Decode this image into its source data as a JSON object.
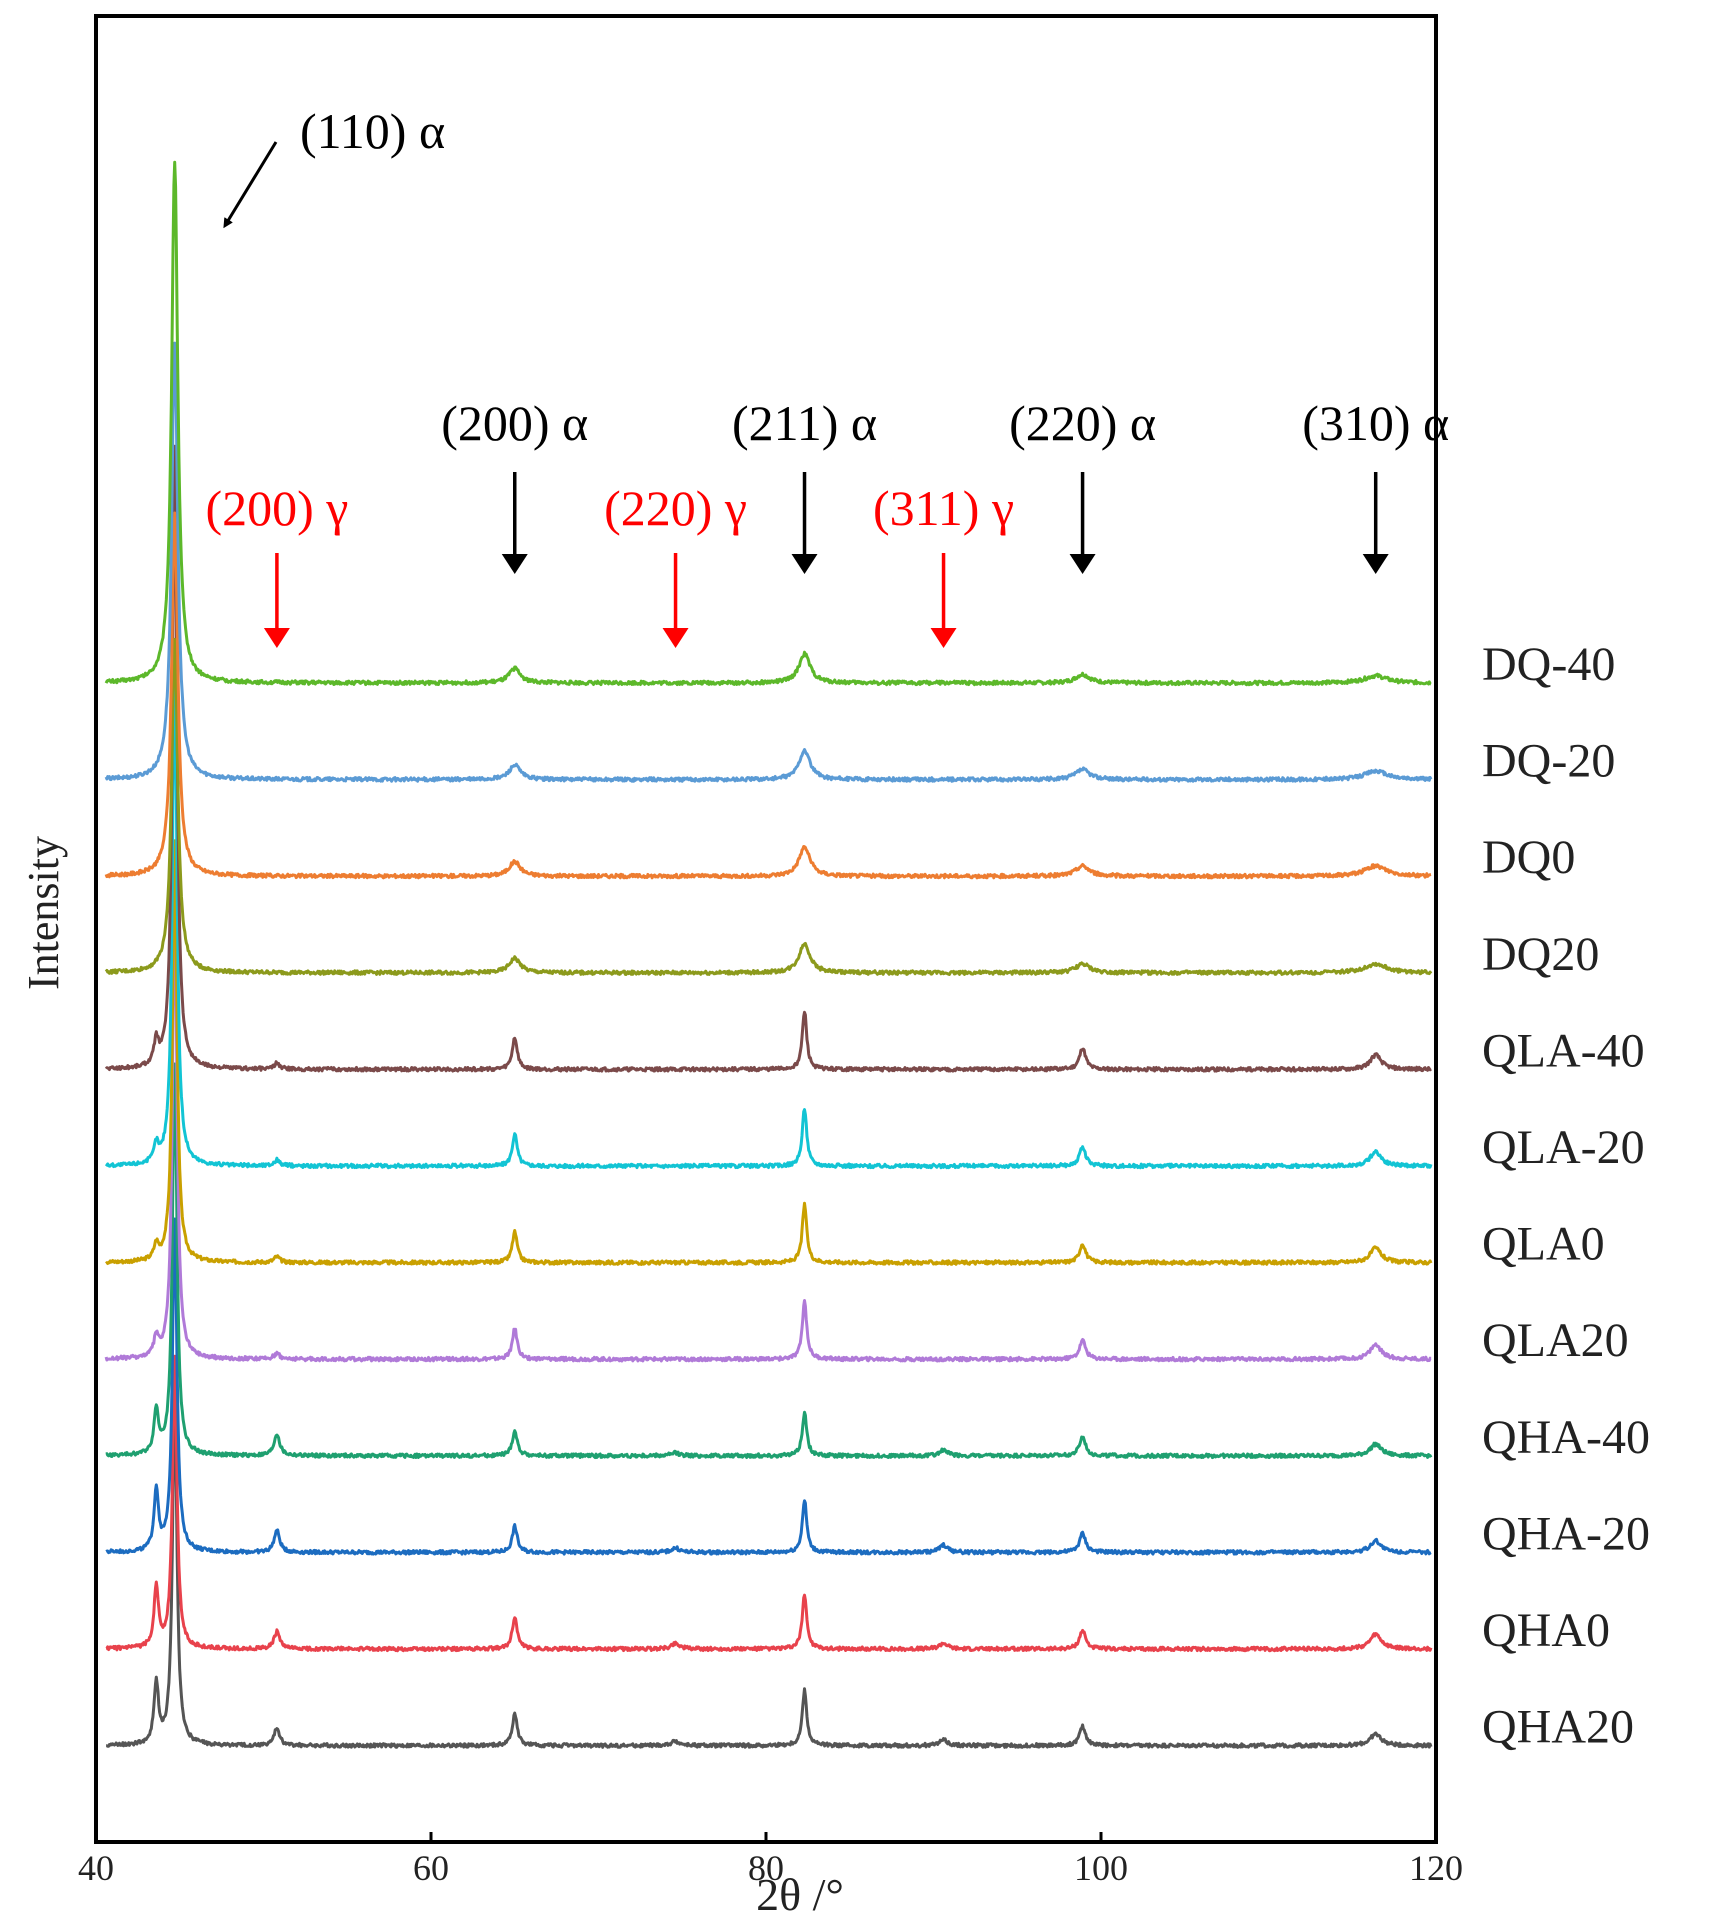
{
  "chart_data": {
    "type": "line",
    "title": "",
    "xlabel": "2θ /°",
    "ylabel": "Intensity",
    "xlim": [
      40,
      120
    ],
    "xticks": [
      "40",
      "60",
      "80",
      "100",
      "120"
    ],
    "grid": false,
    "legend": "right-side labels",
    "alpha_peaks": [
      {
        "label": "(110) α",
        "x": 44.7,
        "color": "#000000"
      },
      {
        "label": "(200) α",
        "x": 65.0,
        "color": "#000000"
      },
      {
        "label": "(211) α",
        "x": 82.3,
        "color": "#000000"
      },
      {
        "label": "(220) α",
        "x": 98.9,
        "color": "#000000"
      },
      {
        "label": "(310) α",
        "x": 116.4,
        "color": "#000000"
      }
    ],
    "gamma_peaks": [
      {
        "label": "(200) γ",
        "x": 50.8,
        "color": "#ff0000"
      },
      {
        "label": "(220) γ",
        "x": 74.6,
        "color": "#ff0000"
      },
      {
        "label": "(311) γ",
        "x": 90.6,
        "color": "#ff0000"
      }
    ],
    "series": [
      {
        "name": "DQ-40",
        "color": "#5cb82a",
        "peaks": [
          [
            44.7,
            3.6,
            0.22
          ],
          [
            65.0,
            0.1,
            0.4
          ],
          [
            82.3,
            0.2,
            0.4
          ],
          [
            98.9,
            0.06,
            0.5
          ],
          [
            116.4,
            0.05,
            0.8
          ]
        ]
      },
      {
        "name": "DQ-20",
        "color": "#5b9bd5",
        "peaks": [
          [
            44.7,
            3.0,
            0.22
          ],
          [
            65.0,
            0.1,
            0.4
          ],
          [
            82.3,
            0.2,
            0.4
          ],
          [
            98.9,
            0.07,
            0.5
          ],
          [
            116.4,
            0.06,
            0.8
          ]
        ]
      },
      {
        "name": "DQ0",
        "color": "#ed7d31",
        "peaks": [
          [
            44.7,
            2.5,
            0.22
          ],
          [
            65.0,
            0.1,
            0.4
          ],
          [
            82.3,
            0.2,
            0.4
          ],
          [
            98.9,
            0.07,
            0.5
          ],
          [
            116.4,
            0.07,
            0.8
          ]
        ]
      },
      {
        "name": "DQ20",
        "color": "#8c9a1c",
        "peaks": [
          [
            44.7,
            2.3,
            0.22
          ],
          [
            65.0,
            0.1,
            0.4
          ],
          [
            82.3,
            0.2,
            0.4
          ],
          [
            98.9,
            0.06,
            0.5
          ],
          [
            116.4,
            0.06,
            0.8
          ]
        ]
      },
      {
        "name": "QLA-40",
        "color": "#7b4a4a",
        "peaks": [
          [
            43.6,
            0.16,
            0.16
          ],
          [
            44.7,
            4.3,
            0.16
          ],
          [
            50.8,
            0.04,
            0.2
          ],
          [
            65.0,
            0.22,
            0.18
          ],
          [
            82.3,
            0.4,
            0.16
          ],
          [
            98.9,
            0.15,
            0.22
          ],
          [
            116.4,
            0.1,
            0.4
          ]
        ]
      },
      {
        "name": "QLA-20",
        "color": "#12c4d4",
        "peaks": [
          [
            43.6,
            0.12,
            0.16
          ],
          [
            44.7,
            3.5,
            0.16
          ],
          [
            50.8,
            0.04,
            0.2
          ],
          [
            65.0,
            0.22,
            0.18
          ],
          [
            82.3,
            0.4,
            0.16
          ],
          [
            98.9,
            0.13,
            0.22
          ],
          [
            116.4,
            0.1,
            0.4
          ]
        ]
      },
      {
        "name": "QLA0",
        "color": "#c9a000",
        "peaks": [
          [
            43.6,
            0.1,
            0.16
          ],
          [
            44.7,
            2.9,
            0.16
          ],
          [
            50.8,
            0.04,
            0.2
          ],
          [
            65.0,
            0.21,
            0.18
          ],
          [
            82.3,
            0.4,
            0.16
          ],
          [
            98.9,
            0.13,
            0.22
          ],
          [
            116.4,
            0.1,
            0.4
          ]
        ]
      },
      {
        "name": "QLA20",
        "color": "#b07ad8",
        "peaks": [
          [
            43.6,
            0.13,
            0.16
          ],
          [
            44.7,
            3.2,
            0.16
          ],
          [
            50.8,
            0.04,
            0.2
          ],
          [
            65.0,
            0.21,
            0.18
          ],
          [
            82.3,
            0.4,
            0.16
          ],
          [
            98.9,
            0.13,
            0.22
          ],
          [
            116.4,
            0.1,
            0.4
          ]
        ]
      },
      {
        "name": "QHA-40",
        "color": "#1fa070",
        "peaks": [
          [
            43.6,
            0.3,
            0.16
          ],
          [
            44.7,
            2.7,
            0.16
          ],
          [
            50.8,
            0.15,
            0.2
          ],
          [
            65.0,
            0.17,
            0.18
          ],
          [
            74.6,
            0.02,
            0.3
          ],
          [
            82.3,
            0.3,
            0.16
          ],
          [
            90.6,
            0.04,
            0.3
          ],
          [
            98.9,
            0.13,
            0.22
          ],
          [
            116.4,
            0.08,
            0.4
          ]
        ]
      },
      {
        "name": "QHA-20",
        "color": "#1c6cc0",
        "peaks": [
          [
            43.6,
            0.42,
            0.16
          ],
          [
            44.7,
            2.3,
            0.16
          ],
          [
            50.8,
            0.15,
            0.2
          ],
          [
            65.0,
            0.18,
            0.18
          ],
          [
            74.6,
            0.03,
            0.3
          ],
          [
            82.3,
            0.36,
            0.16
          ],
          [
            90.6,
            0.05,
            0.3
          ],
          [
            98.9,
            0.13,
            0.22
          ],
          [
            116.4,
            0.08,
            0.4
          ]
        ]
      },
      {
        "name": "QHA0",
        "color": "#e8424c",
        "peaks": [
          [
            43.6,
            0.42,
            0.16
          ],
          [
            44.7,
            2.0,
            0.16
          ],
          [
            50.8,
            0.12,
            0.2
          ],
          [
            65.0,
            0.22,
            0.18
          ],
          [
            74.6,
            0.04,
            0.3
          ],
          [
            82.3,
            0.38,
            0.16
          ],
          [
            90.6,
            0.04,
            0.3
          ],
          [
            98.9,
            0.13,
            0.22
          ],
          [
            116.4,
            0.1,
            0.4
          ]
        ]
      },
      {
        "name": "QHA20",
        "color": "#555555",
        "peaks": [
          [
            43.6,
            0.42,
            0.16
          ],
          [
            44.7,
            2.4,
            0.16
          ],
          [
            50.8,
            0.12,
            0.2
          ],
          [
            65.0,
            0.22,
            0.18
          ],
          [
            74.6,
            0.03,
            0.3
          ],
          [
            82.3,
            0.38,
            0.16
          ],
          [
            90.6,
            0.04,
            0.3
          ],
          [
            98.9,
            0.13,
            0.22
          ],
          [
            116.4,
            0.08,
            0.4
          ]
        ]
      }
    ]
  }
}
